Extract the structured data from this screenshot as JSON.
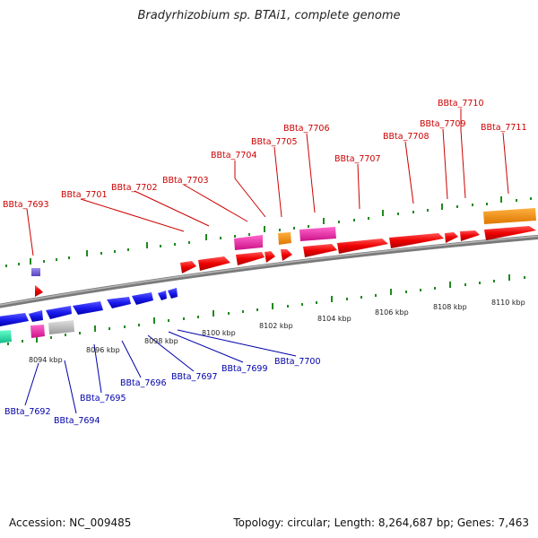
{
  "title": "Bradyrhizobium sp. BTAi1, complete genome",
  "footer": {
    "accession": "Accession: NC_009485",
    "topology": "Topology: circular; Length: 8,264,687 bp; Genes: 7,463"
  },
  "colors": {
    "forward_genes": "#ee0000",
    "reverse_genes": "#1a1aee",
    "backbone": "#8a8a8a",
    "tick": "#1f8a1f",
    "top_labels": "#cc0000",
    "bottom_labels": "#0000aa"
  },
  "scale_labels": [
    "8094 kbp",
    "8096 kbp",
    "8098 kbp",
    "8100 kbp",
    "8102 kbp",
    "8104 kbp",
    "8106 kbp",
    "8108 kbp",
    "8110 kbp"
  ],
  "top_gene_labels": [
    "BBta_7693",
    "BBta_7701",
    "BBta_7702",
    "BBta_7703",
    "BBta_7704",
    "BBta_7705",
    "BBta_7706",
    "BBta_7707",
    "BBta_7708",
    "BBta_7709",
    "BBta_7710",
    "BBta_7711"
  ],
  "bottom_gene_labels": [
    "BBta_7692",
    "BBta_7694",
    "BBta_7695",
    "BBta_7696",
    "BBta_7697",
    "BBta_7699",
    "BBta_7700"
  ]
}
